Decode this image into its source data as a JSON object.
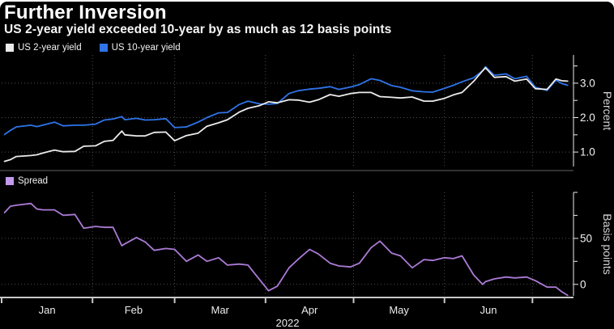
{
  "header": {
    "title": "Further Inversion",
    "subtitle": "US 2-year yield exceeded 10-year by as much as 12 basis points"
  },
  "x_axis": {
    "month_labels": [
      "Jan",
      "Feb",
      "Mar",
      "Apr",
      "May",
      "Jun"
    ],
    "year_label": "2022",
    "month_tick_days": [
      0,
      31,
      59,
      90,
      120,
      151,
      181
    ],
    "domain_days": [
      0,
      195
    ]
  },
  "chart_data": [
    {
      "type": "line",
      "panel": "yields",
      "ylabel": "Percent",
      "xlabel": "",
      "ylim": [
        0.58,
        3.82
      ],
      "grid": true,
      "legend_position": "top-left",
      "yticks": [
        {
          "v": 1.0,
          "label": "1.0"
        },
        {
          "v": 2.0,
          "label": "2.0"
        },
        {
          "v": 3.0,
          "label": "3.0"
        }
      ],
      "yticks_minor": [
        1.5,
        2.5,
        3.5
      ],
      "gridlines_y": [
        1.0,
        2.0,
        3.0
      ],
      "x_days": [
        1,
        3,
        5,
        10,
        12,
        14,
        18,
        21,
        25,
        28,
        32,
        35,
        38,
        41,
        42,
        46,
        49,
        52,
        56,
        59,
        63,
        67,
        70,
        74,
        77,
        81,
        84,
        88,
        91,
        94,
        98,
        101,
        105,
        108,
        112,
        115,
        119,
        122,
        126,
        129,
        133,
        136,
        140,
        144,
        147,
        151,
        154,
        157,
        161,
        164,
        165,
        168,
        172,
        175,
        179,
        182,
        186,
        189,
        191,
        193
      ],
      "series": [
        {
          "name": "US 10-year yield",
          "color": "#2f74e8",
          "values": [
            1.51,
            1.63,
            1.73,
            1.78,
            1.74,
            1.78,
            1.87,
            1.76,
            1.78,
            1.78,
            1.81,
            1.93,
            1.96,
            2.03,
            1.94,
            1.98,
            1.93,
            1.94,
            1.97,
            1.71,
            1.73,
            1.87,
            2.0,
            2.14,
            2.15,
            2.38,
            2.48,
            2.4,
            2.39,
            2.41,
            2.7,
            2.78,
            2.83,
            2.85,
            2.9,
            2.82,
            2.89,
            2.96,
            3.13,
            3.08,
            2.93,
            2.88,
            2.78,
            2.75,
            2.74,
            2.85,
            2.94,
            3.04,
            3.16,
            3.36,
            3.48,
            3.23,
            3.27,
            3.13,
            3.2,
            2.88,
            2.79,
            3.09,
            2.99,
            2.94
          ]
        },
        {
          "name": "US 2-year yield",
          "color": "#ececec",
          "values": [
            0.73,
            0.78,
            0.87,
            0.9,
            0.92,
            0.97,
            1.06,
            1.01,
            1.02,
            1.17,
            1.18,
            1.31,
            1.34,
            1.61,
            1.5,
            1.47,
            1.47,
            1.57,
            1.58,
            1.33,
            1.48,
            1.55,
            1.75,
            1.85,
            1.94,
            2.16,
            2.27,
            2.35,
            2.46,
            2.43,
            2.52,
            2.51,
            2.45,
            2.52,
            2.67,
            2.62,
            2.7,
            2.73,
            2.73,
            2.61,
            2.59,
            2.57,
            2.6,
            2.48,
            2.48,
            2.56,
            2.66,
            2.73,
            3.06,
            3.36,
            3.45,
            3.17,
            3.19,
            3.06,
            3.12,
            2.84,
            2.82,
            3.12,
            3.07,
            3.06
          ]
        }
      ]
    },
    {
      "type": "line",
      "panel": "spread",
      "ylabel": "Basis points",
      "xlabel": "",
      "ylim": [
        -12.5,
        100
      ],
      "grid": true,
      "legend_position": "top-left",
      "yticks": [
        {
          "v": 0,
          "label": "0"
        },
        {
          "v": 50,
          "label": "50"
        }
      ],
      "yticks_minor": [
        25,
        75,
        100
      ],
      "gridlines_y": [
        0,
        50
      ],
      "x_days": [
        1,
        3,
        5,
        10,
        12,
        14,
        18,
        21,
        25,
        28,
        32,
        35,
        38,
        41,
        42,
        46,
        49,
        52,
        56,
        59,
        63,
        67,
        70,
        74,
        77,
        81,
        84,
        88,
        91,
        94,
        98,
        101,
        105,
        108,
        112,
        115,
        119,
        122,
        126,
        129,
        133,
        136,
        140,
        144,
        147,
        151,
        154,
        157,
        161,
        164,
        165,
        168,
        172,
        175,
        179,
        182,
        186,
        189,
        191,
        193
      ],
      "series": [
        {
          "name": "Spread",
          "color": "#ab7bd6",
          "swatch_color": "#c49aee",
          "values": [
            78,
            85,
            86,
            88,
            82,
            81,
            81,
            75,
            76,
            61,
            63,
            62,
            62,
            42,
            44,
            51,
            46,
            37,
            39,
            38,
            25,
            32,
            25,
            29,
            21,
            22,
            21,
            5,
            -7,
            -2,
            18,
            27,
            38,
            33,
            23,
            20,
            19,
            23,
            40,
            47,
            34,
            31,
            18,
            27,
            26,
            29,
            28,
            31,
            10,
            0,
            3,
            6,
            8,
            7,
            8,
            4,
            -3,
            -3,
            -8,
            -12
          ]
        }
      ]
    }
  ]
}
